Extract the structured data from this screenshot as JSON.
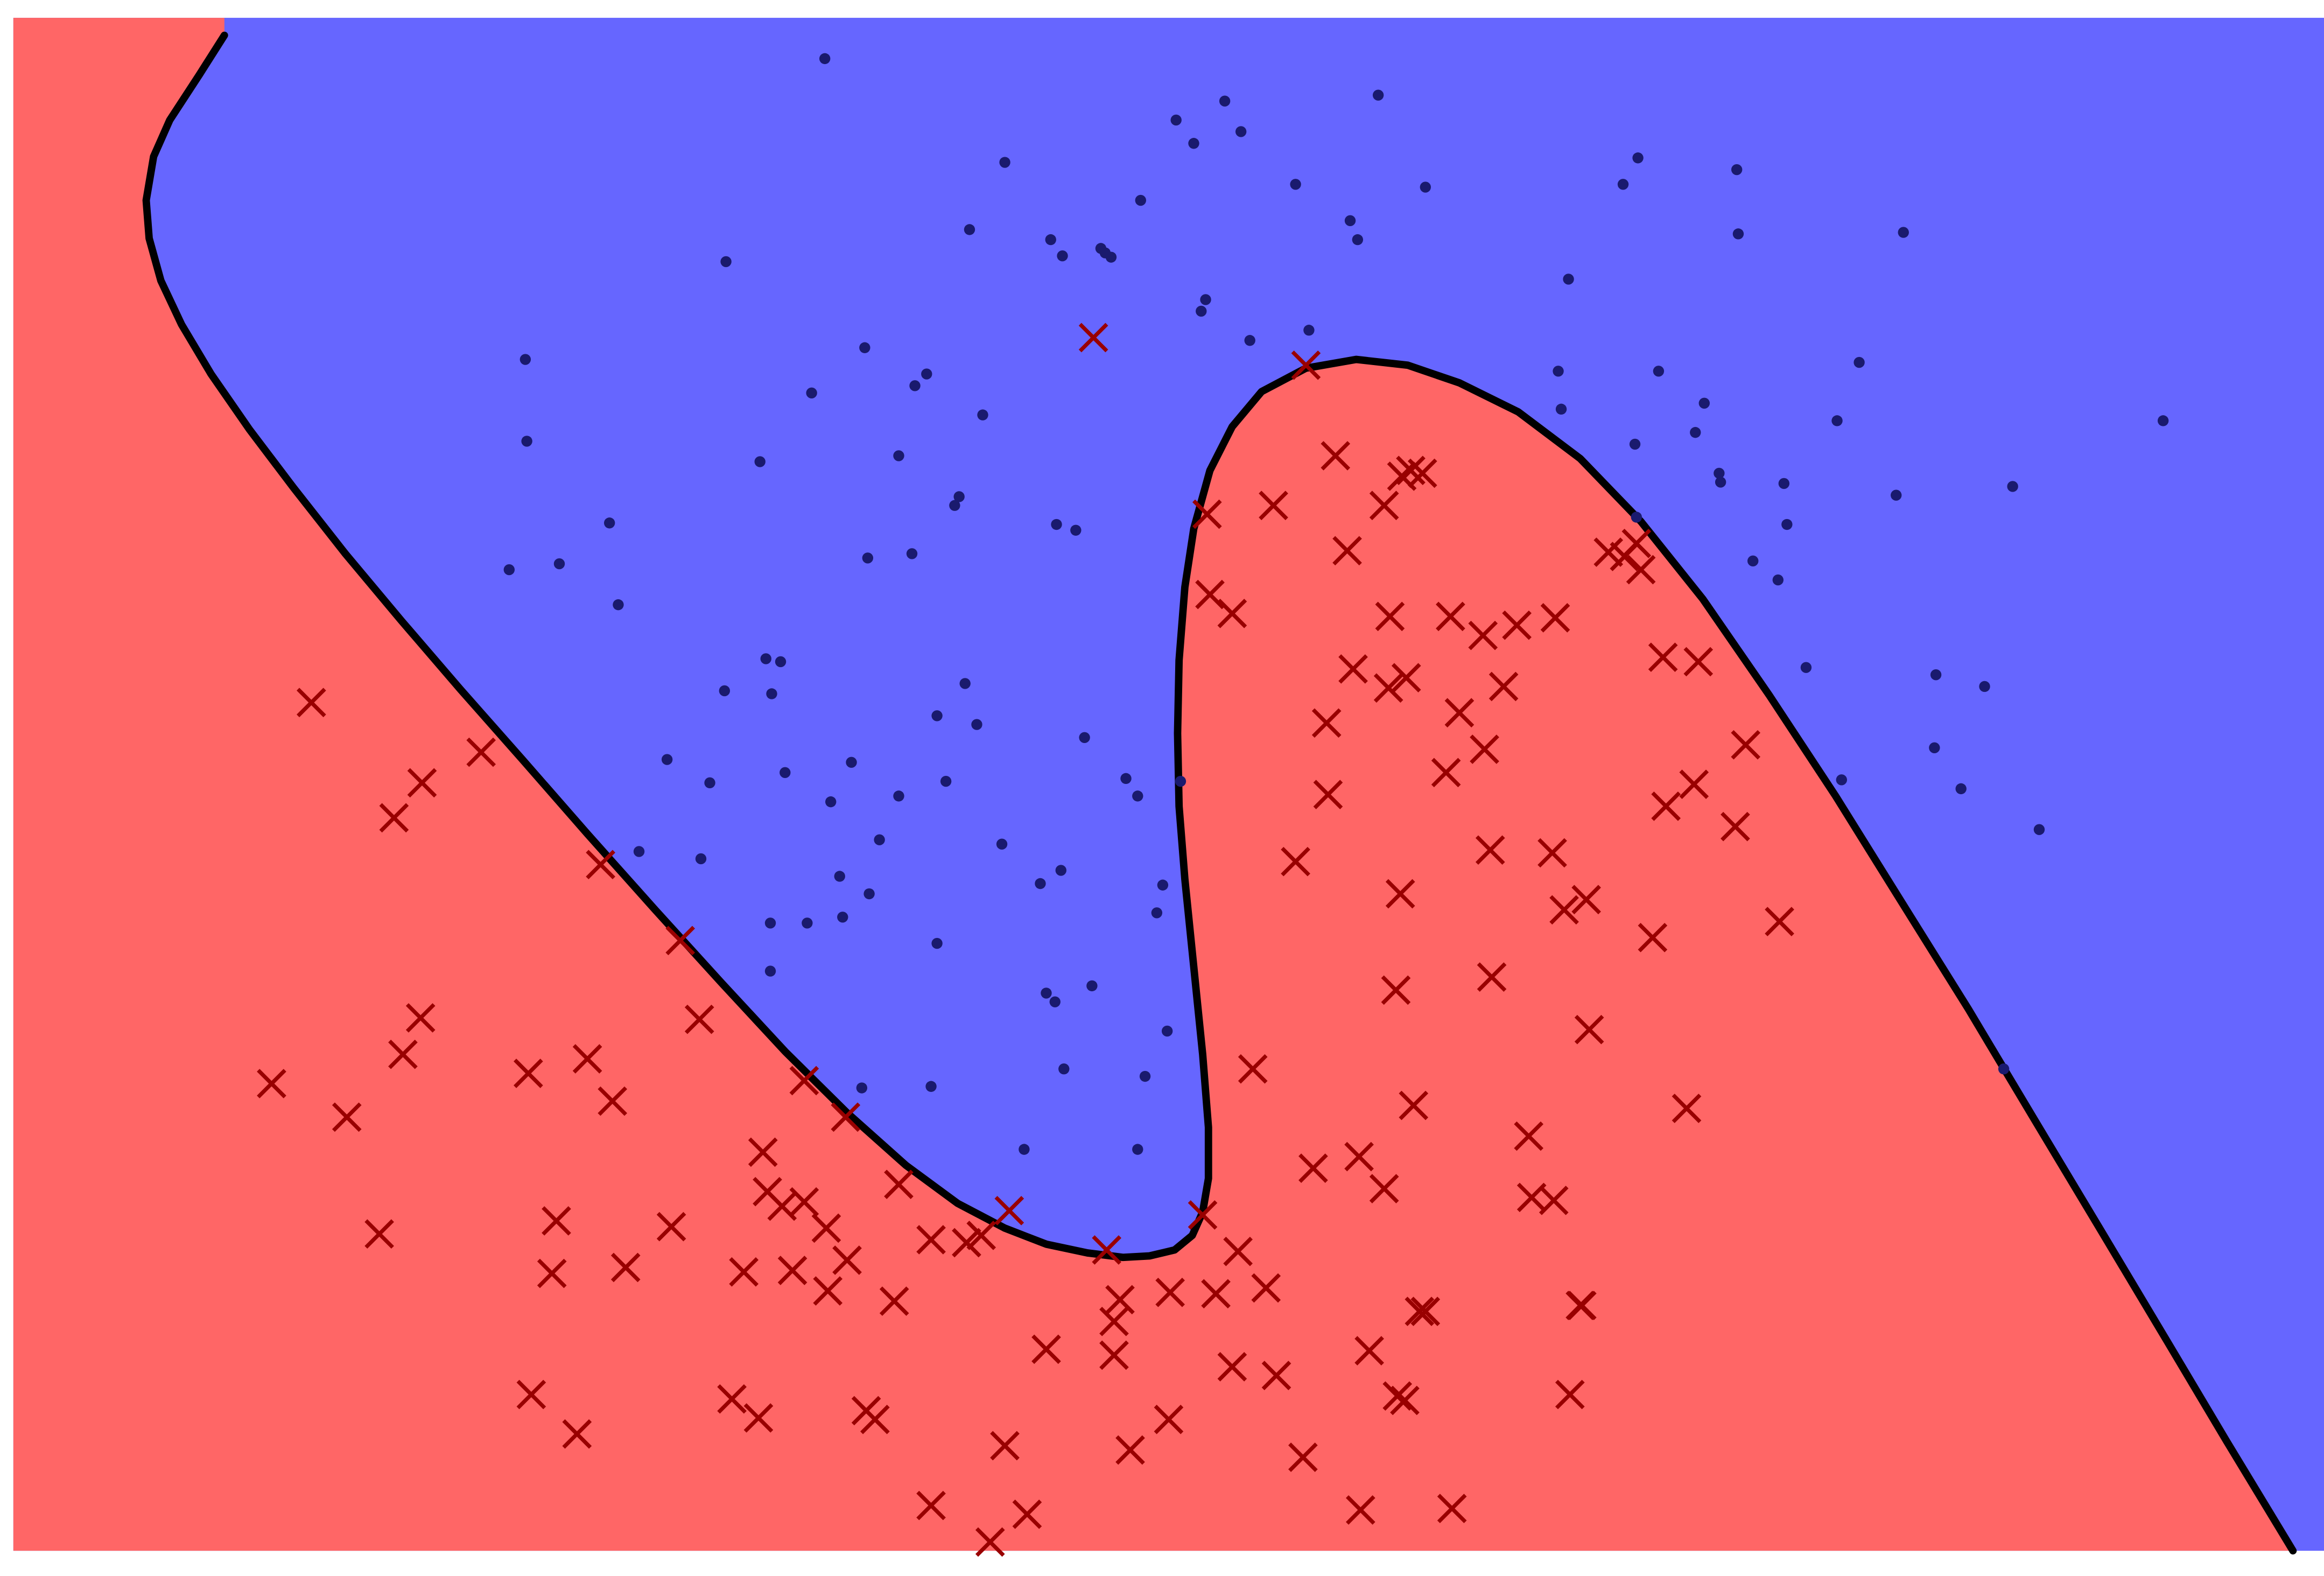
{
  "chart_data": {
    "type": "scatter",
    "title": "",
    "xlabel": "",
    "ylabel": "",
    "xlim": [
      0,
      1566
    ],
    "ylim": [
      0,
      1050
    ],
    "axes_visible": false,
    "grid": false,
    "legend": "none",
    "colors": {
      "region_a": "#6666ff",
      "region_b": "#ff6666",
      "class_a_marker": "#1a1a6e",
      "class_b_marker": "#990000",
      "boundary": "#000000"
    },
    "decision_regions": [
      {
        "class": "class_a",
        "color": "#6666ff"
      },
      {
        "class": "class_b",
        "color": "#ff6666"
      }
    ],
    "decision_boundary": [
      [
        143,
        1038
      ],
      [
        126,
        1011
      ],
      [
        106,
        980
      ],
      [
        95,
        955
      ],
      [
        90,
        925
      ],
      [
        92,
        899
      ],
      [
        100,
        870
      ],
      [
        114,
        840
      ],
      [
        134,
        806
      ],
      [
        160,
        768
      ],
      [
        190,
        728
      ],
      [
        225,
        683
      ],
      [
        263,
        637
      ],
      [
        303,
        590
      ],
      [
        345,
        542
      ],
      [
        389,
        491
      ],
      [
        435,
        439
      ],
      [
        480,
        389
      ],
      [
        523,
        342
      ],
      [
        565,
        300
      ],
      [
        605,
        264
      ],
      [
        640,
        238
      ],
      [
        672,
        221
      ],
      [
        700,
        210
      ],
      [
        728,
        204
      ],
      [
        752,
        201
      ],
      [
        770,
        202
      ],
      [
        787,
        206
      ],
      [
        799,
        216
      ],
      [
        806,
        232
      ],
      [
        810,
        255
      ],
      [
        810,
        290
      ],
      [
        806,
        340
      ],
      [
        800,
        400
      ],
      [
        794,
        460
      ],
      [
        790,
        510
      ],
      [
        789,
        560
      ],
      [
        790,
        610
      ],
      [
        794,
        660
      ],
      [
        800,
        700
      ],
      [
        811,
        740
      ],
      [
        826,
        770
      ],
      [
        846,
        794
      ],
      [
        876,
        810
      ],
      [
        910,
        816
      ],
      [
        945,
        812
      ],
      [
        980,
        800
      ],
      [
        1020,
        780
      ],
      [
        1062,
        748
      ],
      [
        1103,
        705
      ],
      [
        1145,
        652
      ],
      [
        1190,
        586
      ],
      [
        1235,
        517
      ],
      [
        1280,
        444
      ],
      [
        1325,
        371
      ],
      [
        1370,
        295
      ],
      [
        1415,
        219
      ],
      [
        1460,
        143
      ],
      [
        1500,
        75
      ],
      [
        1545,
        0
      ]
    ],
    "series": [
      {
        "marker": "o",
        "color": "#1a1a6e",
        "points": [
          [
            550,
            1022
          ],
          [
            788,
            980
          ],
          [
            821,
            993
          ],
          [
            832,
            972
          ],
          [
            800,
            964
          ],
          [
            925,
            997
          ],
          [
            672,
            951
          ],
          [
            764,
            925
          ],
          [
            869,
            936
          ],
          [
            957,
            934
          ],
          [
            1101,
            954
          ],
          [
            1091,
            936
          ],
          [
            1168,
            946
          ],
          [
            1169,
            902
          ],
          [
            1281,
            903
          ],
          [
            483,
            883
          ],
          [
            648,
            905
          ],
          [
            703,
            898
          ],
          [
            711,
            887
          ],
          [
            737,
            892
          ],
          [
            740,
            889
          ],
          [
            744,
            886
          ],
          [
            906,
            911
          ],
          [
            911,
            898
          ],
          [
            1054,
            871
          ],
          [
            808,
            857
          ],
          [
            805,
            849
          ],
          [
            838,
            829
          ],
          [
            878,
            836
          ],
          [
            577,
            824
          ],
          [
            1251,
            814
          ],
          [
            347,
            816
          ],
          [
            619,
            806
          ],
          [
            611,
            798
          ],
          [
            541,
            793
          ],
          [
            657,
            778
          ],
          [
            1047,
            808
          ],
          [
            1115,
            808
          ],
          [
            1049,
            782
          ],
          [
            1146,
            786
          ],
          [
            1140,
            766
          ],
          [
            1236,
            774
          ],
          [
            1457,
            774
          ],
          [
            348,
            760
          ],
          [
            600,
            750
          ],
          [
            506,
            746
          ],
          [
            1099,
            758
          ],
          [
            1156,
            738
          ],
          [
            1157,
            732
          ],
          [
            1200,
            731
          ],
          [
            1276,
            723
          ],
          [
            1355,
            729
          ],
          [
            641,
            722
          ],
          [
            638,
            716
          ],
          [
            404,
            704
          ],
          [
            707,
            703
          ],
          [
            720,
            699
          ],
          [
            1100,
            708
          ],
          [
            1202,
            703
          ],
          [
            336,
            672
          ],
          [
            370,
            676
          ],
          [
            579,
            680
          ],
          [
            609,
            683
          ],
          [
            1179,
            678
          ],
          [
            1196,
            665
          ],
          [
            410,
            648
          ],
          [
            510,
            611
          ],
          [
            520,
            609
          ],
          [
            482,
            589
          ],
          [
            514,
            587
          ],
          [
            1215,
            605
          ],
          [
            1303,
            600
          ],
          [
            1336,
            592
          ],
          [
            645,
            594
          ],
          [
            626,
            572
          ],
          [
            653,
            566
          ],
          [
            726,
            557
          ],
          [
            443,
            542
          ],
          [
            568,
            540
          ],
          [
            1302,
            550
          ],
          [
            472,
            526
          ],
          [
            523,
            533
          ],
          [
            632,
            527
          ],
          [
            754,
            529
          ],
          [
            762,
            517
          ],
          [
            791,
            527
          ],
          [
            1239,
            528
          ],
          [
            1320,
            522
          ],
          [
            600,
            517
          ],
          [
            554,
            513
          ],
          [
            1373,
            494
          ],
          [
            587,
            487
          ],
          [
            670,
            484
          ],
          [
            424,
            479
          ],
          [
            466,
            474
          ],
          [
            710,
            466
          ],
          [
            560,
            462
          ],
          [
            696,
            457
          ],
          [
            580,
            450
          ],
          [
            779,
            456
          ],
          [
            775,
            437
          ],
          [
            513,
            430
          ],
          [
            538,
            430
          ],
          [
            562,
            434
          ],
          [
            626,
            416
          ],
          [
            513,
            397
          ],
          [
            731,
            387
          ],
          [
            700,
            382
          ],
          [
            706,
            376
          ],
          [
            782,
            356
          ],
          [
            1349,
            330
          ],
          [
            712,
            330
          ],
          [
            767,
            325
          ],
          [
            622,
            318
          ],
          [
            575,
            317
          ],
          [
            685,
            275
          ],
          [
            762,
            275
          ]
        ]
      },
      {
        "marker": "x",
        "color": "#990000",
        "points": [
          [
            732,
            831
          ],
          [
            876,
            812
          ],
          [
            896,
            750
          ],
          [
            941,
            736
          ],
          [
            947,
            740
          ],
          [
            955,
            738
          ],
          [
            854,
            716
          ],
          [
            929,
            716
          ],
          [
            809,
            710
          ],
          [
            904,
            685
          ],
          [
            1081,
            684
          ],
          [
            1092,
            681
          ],
          [
            1103,
            672
          ],
          [
            1100,
            690
          ],
          [
            811,
            655
          ],
          [
            826,
            642
          ],
          [
            933,
            640
          ],
          [
            974,
            640
          ],
          [
            996,
            627
          ],
          [
            1019,
            634
          ],
          [
            1045,
            639
          ],
          [
            1118,
            612
          ],
          [
            1142,
            609
          ],
          [
            202,
            581
          ],
          [
            908,
            604
          ],
          [
            944,
            598
          ],
          [
            932,
            591
          ],
          [
            1010,
            592
          ],
          [
            890,
            567
          ],
          [
            980,
            574
          ],
          [
            317,
            547
          ],
          [
            997,
            549
          ],
          [
            1174,
            552
          ],
          [
            277,
            526
          ],
          [
            258,
            502
          ],
          [
            891,
            518
          ],
          [
            971,
            533
          ],
          [
            1120,
            510
          ],
          [
            1139,
            525
          ],
          [
            1167,
            496
          ],
          [
            869,
            472
          ],
          [
            1001,
            480
          ],
          [
            1043,
            478
          ],
          [
            398,
            470
          ],
          [
            940,
            450
          ],
          [
            1051,
            439
          ],
          [
            1066,
            446
          ],
          [
            1197,
            431
          ],
          [
            452,
            418
          ],
          [
            1111,
            420
          ],
          [
            1002,
            393
          ],
          [
            937,
            384
          ],
          [
            1068,
            357
          ],
          [
            276,
            365
          ],
          [
            465,
            364
          ],
          [
            264,
            340
          ],
          [
            840,
            330
          ],
          [
            175,
            320
          ],
          [
            349,
            327
          ],
          [
            389,
            337
          ],
          [
            406,
            308
          ],
          [
            536,
            322
          ],
          [
            564,
            297
          ],
          [
            226,
            297
          ],
          [
            949,
            305
          ],
          [
            1134,
            303
          ],
          [
            1027,
            284
          ],
          [
            508,
            273
          ],
          [
            881,
            262
          ],
          [
            912,
            270
          ],
          [
            600,
            251
          ],
          [
            511,
            246
          ],
          [
            521,
            236
          ],
          [
            536,
            239
          ],
          [
            929,
            248
          ],
          [
            1029,
            242
          ],
          [
            1044,
            240
          ],
          [
            248,
            217
          ],
          [
            368,
            226
          ],
          [
            446,
            222
          ],
          [
            551,
            221
          ],
          [
            622,
            213
          ],
          [
            646,
            211
          ],
          [
            656,
            216
          ],
          [
            675,
            233
          ],
          [
            741,
            206
          ],
          [
            806,
            230
          ],
          [
            830,
            205
          ],
          [
            365,
            190
          ],
          [
            415,
            194
          ],
          [
            495,
            191
          ],
          [
            528,
            192
          ],
          [
            565,
            199
          ],
          [
            552,
            178
          ],
          [
            597,
            171
          ],
          [
            784,
            177
          ],
          [
            750,
            172
          ],
          [
            815,
            176
          ],
          [
            849,
            180
          ],
          [
            957,
            164
          ],
          [
            953,
            164
          ],
          [
            1062,
            168
          ],
          [
            746,
            157
          ],
          [
            1063,
            168
          ],
          [
            700,
            138
          ],
          [
            746,
            134
          ],
          [
            826,
            126
          ],
          [
            856,
            120
          ],
          [
            919,
            137
          ],
          [
            351,
            107
          ],
          [
            487,
            104
          ],
          [
            505,
            91
          ],
          [
            578,
            96
          ],
          [
            584,
            90
          ],
          [
            382,
            80
          ],
          [
            783,
            90
          ],
          [
            672,
            72
          ],
          [
            757,
            69
          ],
          [
            874,
            64
          ],
          [
            938,
            106
          ],
          [
            943,
            103
          ],
          [
            1055,
            107
          ],
          [
            622,
            31
          ],
          [
            687,
            25
          ],
          [
            662,
            6
          ],
          [
            913,
            28
          ],
          [
            975,
            29
          ]
        ]
      }
    ]
  }
}
